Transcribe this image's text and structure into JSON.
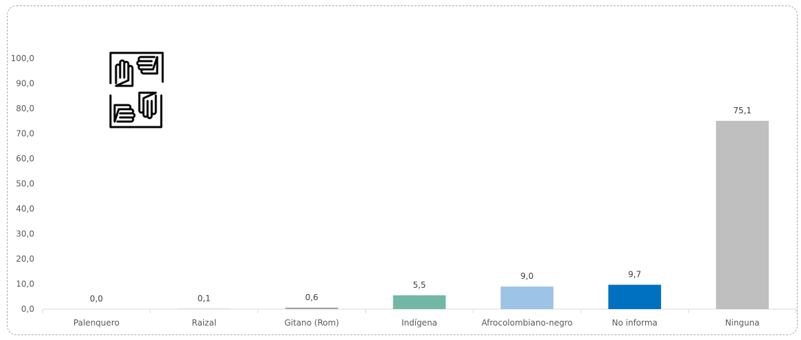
{
  "chart_data": {
    "type": "bar",
    "title": "",
    "xlabel": "",
    "ylabel": "",
    "ylim": [
      0,
      100
    ],
    "yticks": [
      "0,0",
      "10,0",
      "20,0",
      "30,0",
      "40,0",
      "50,0",
      "60,0",
      "70,0",
      "80,0",
      "90,0",
      "100,0"
    ],
    "categories": [
      "Palenquero",
      "Raizal",
      "Gitano (Rom)",
      "Indígena",
      "Afrocolombiano-negro",
      "No informa",
      "Ninguna"
    ],
    "values": [
      0.0,
      0.1,
      0.6,
      5.5,
      9.0,
      9.7,
      75.1
    ],
    "value_labels": [
      "0,0",
      "0,1",
      "0,6",
      "5,5",
      "9,0",
      "9,7",
      "75,1"
    ],
    "bar_colors": [
      "#a5a5a5",
      "#a5a5a5",
      "#a5a5a5",
      "#73b8a6",
      "#9dc3e6",
      "#0070c0",
      "#bfbfbf"
    ],
    "grid": false,
    "legend": "none"
  },
  "decoration": {
    "icon": "joined-hands-icon",
    "icon_color": "#000000"
  }
}
